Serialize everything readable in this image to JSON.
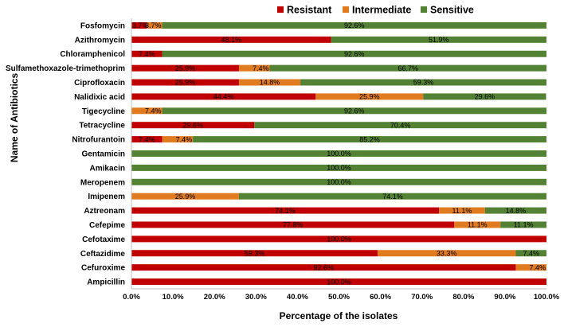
{
  "chart_data": {
    "type": "bar",
    "orientation": "horizontal",
    "stacked": true,
    "title": "",
    "xlabel": "Percentage of the isolates",
    "ylabel": "Name of Antibiotics",
    "xlim": [
      0,
      100
    ],
    "x_ticks": [
      "0.0%",
      "10.0%",
      "20.0%",
      "30.0%",
      "40.0%",
      "50.0%",
      "60.0%",
      "70.0%",
      "80.0%",
      "90.0%",
      "100.0%"
    ],
    "grid": false,
    "legend_position": "top-right",
    "categories": [
      "Fosfomycin",
      "Azithromycin",
      "Chloramphenicol",
      "Sulfamethoxazole-trimethoprim",
      "Ciprofloxacin",
      "Nalidixic acid",
      "Tigecycline",
      "Tetracycline",
      "Nitrofurantoin",
      "Gentamicin",
      "Amikacin",
      "Meropenem",
      "Imipenem",
      "Aztreonam",
      "Cefepime",
      "Cefotaxime",
      "Ceftazidime",
      "Cefuroxime",
      "Ampicillin"
    ],
    "series": [
      {
        "name": "Resistant",
        "color": "#c00000",
        "values": [
          3.7,
          48.1,
          7.4,
          25.9,
          25.9,
          44.4,
          0,
          29.6,
          7.4,
          0,
          0,
          0,
          0,
          74.1,
          77.8,
          100,
          59.3,
          92.6,
          100
        ],
        "labels": [
          "3.7%",
          "48.1%",
          "7.4%",
          "25.9%",
          "25.9%",
          "44.4%",
          "",
          "29.6%",
          "7.4%",
          "",
          "",
          "",
          "",
          "74.1%",
          "77.8%",
          "100.0%",
          "59.3%",
          "92.6%",
          "100.0%"
        ]
      },
      {
        "name": "Intermediate",
        "color": "#e07b20",
        "values": [
          3.7,
          0,
          0,
          7.4,
          14.8,
          25.9,
          7.4,
          0,
          7.4,
          0,
          0,
          0,
          25.9,
          11.1,
          11.1,
          0,
          33.3,
          7.4,
          0
        ],
        "labels": [
          "3.7%",
          "",
          "",
          "7.4%",
          "14.8%",
          "25.9%",
          "7.4%",
          "",
          "7.4%",
          "",
          "",
          "",
          "25.9%",
          "11.1%",
          "11.1%",
          "",
          "33.3%",
          "7.4%",
          ""
        ]
      },
      {
        "name": "Sensitive",
        "color": "#548235",
        "values": [
          92.6,
          51.9,
          92.6,
          66.7,
          59.3,
          29.6,
          92.6,
          70.4,
          85.2,
          100,
          100,
          100,
          74.1,
          14.8,
          11.1,
          0,
          7.4,
          0,
          0
        ],
        "labels": [
          "92.6%",
          "51.9%",
          "92.6%",
          "66.7%",
          "59.3%",
          "29.6%",
          "92.6%",
          "70.4%",
          "85.2%",
          "100.0%",
          "100.0%",
          "100.0%",
          "74.1%",
          "14.8%",
          "11.1%",
          "",
          "7.4%",
          "",
          ""
        ]
      }
    ]
  }
}
